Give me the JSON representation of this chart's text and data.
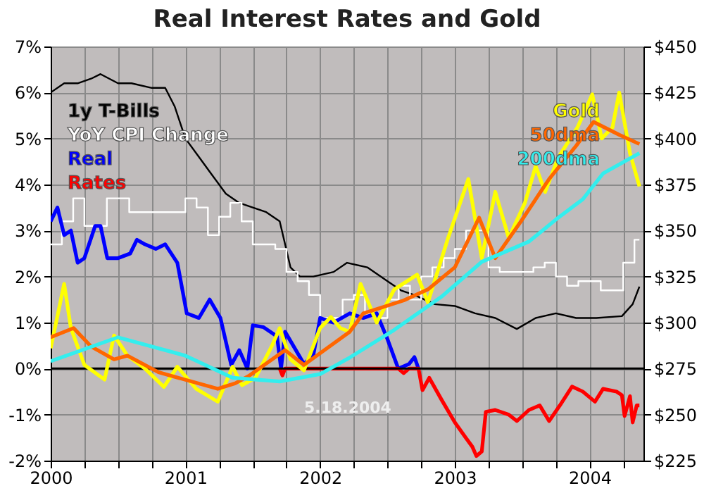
{
  "chart_data": {
    "type": "line",
    "title": "Real Interest Rates and Gold",
    "annotations": [
      "5.18.2004"
    ],
    "xlim": [
      2000,
      2004.4
    ],
    "xticks": [
      2000,
      {
        "value": 2000.25,
        "label": null
      },
      {
        "value": 2000.5,
        "label": null
      },
      {
        "value": 2000.75,
        "label": null
      },
      2001,
      {
        "value": 2001.25,
        "label": null
      },
      {
        "value": 2001.5,
        "label": null
      },
      {
        "value": 2001.75,
        "label": null
      },
      2002,
      {
        "value": 2002.25,
        "label": null
      },
      {
        "value": 2002.5,
        "label": null
      },
      {
        "value": 2002.75,
        "label": null
      },
      2003,
      {
        "value": 2003.25,
        "label": null
      },
      {
        "value": 2003.5,
        "label": null
      },
      {
        "value": 2003.75,
        "label": null
      },
      2004,
      {
        "value": 2004.25,
        "label": null
      }
    ],
    "ylim": [
      -2,
      7
    ],
    "yticks": [
      {
        "value": -2,
        "label": "-2%"
      },
      {
        "value": -1,
        "label": "-1%"
      },
      {
        "value": 0,
        "label": "0%"
      },
      {
        "value": 1,
        "label": "1%"
      },
      {
        "value": 2,
        "label": "2%"
      },
      {
        "value": 3,
        "label": "3%"
      },
      {
        "value": 4,
        "label": "4%"
      },
      {
        "value": 5,
        "label": "5%"
      },
      {
        "value": 6,
        "label": "6%"
      },
      {
        "value": 7,
        "label": "7%"
      }
    ],
    "y2lim": [
      225,
      450
    ],
    "y2ticks": [
      {
        "value": 225,
        "label": "$225"
      },
      {
        "value": 250,
        "label": "$250"
      },
      {
        "value": 275,
        "label": "$275"
      },
      {
        "value": 300,
        "label": "$300"
      },
      {
        "value": 325,
        "label": "$325"
      },
      {
        "value": 350,
        "label": "$350"
      },
      {
        "value": 375,
        "label": "$375"
      },
      {
        "value": 400,
        "label": "$400"
      },
      {
        "value": 425,
        "label": "$425"
      },
      {
        "value": 450,
        "label": "$450"
      }
    ],
    "grid": true,
    "legend": "top left",
    "ref_lines": [
      {
        "axis": "y",
        "value": 0,
        "label": null,
        "color": "#000000"
      }
    ],
    "series": [
      {
        "name": "1y T-Bills",
        "color": "#000000",
        "type": "line",
        "x": [
          2000,
          2000.1,
          2000.2,
          2000.3,
          2000.37,
          2000.5,
          2000.6,
          2000.75,
          2000.85,
          2000.92,
          2001.0,
          2001.1,
          2001.2,
          2001.3,
          2001.4,
          2001.5,
          2001.6,
          2001.7,
          2001.78,
          2001.85,
          2001.95,
          2002.1,
          2002.2,
          2002.35,
          2002.5,
          2002.6,
          2002.7,
          2002.85,
          2003.0,
          2003.15,
          2003.3,
          2003.46,
          2003.6,
          2003.75,
          2003.9,
          2004.05,
          2004.24,
          2004.32,
          2004.37
        ],
        "values": [
          6.0,
          6.2,
          6.2,
          6.3,
          6.4,
          6.2,
          6.2,
          6.1,
          6.1,
          5.7,
          5.0,
          4.6,
          4.2,
          3.8,
          3.6,
          3.5,
          3.4,
          3.2,
          2.2,
          2.0,
          2.0,
          2.1,
          2.3,
          2.2,
          1.9,
          1.7,
          1.6,
          1.4,
          1.36,
          1.2,
          1.1,
          0.86,
          1.1,
          1.2,
          1.1,
          1.1,
          1.14,
          1.4,
          1.78
        ]
      },
      {
        "name": "YoY CPI Change",
        "color": "#ffffff",
        "type": "step",
        "x": [
          2000,
          2000.083,
          2000.167,
          2000.25,
          2000.333,
          2000.417,
          2000.5,
          2000.583,
          2000.667,
          2000.75,
          2000.833,
          2000.917,
          2001,
          2001.083,
          2001.167,
          2001.25,
          2001.333,
          2001.417,
          2001.5,
          2001.583,
          2001.667,
          2001.75,
          2001.833,
          2001.917,
          2002,
          2002.083,
          2002.167,
          2002.25,
          2002.333,
          2002.417,
          2002.5,
          2002.583,
          2002.667,
          2002.75,
          2002.833,
          2002.917,
          2003,
          2003.083,
          2003.167,
          2003.25,
          2003.333,
          2003.417,
          2003.5,
          2003.583,
          2003.667,
          2003.75,
          2003.833,
          2003.917,
          2004,
          2004.083,
          2004.167,
          2004.25,
          2004.333,
          2004.37
        ],
        "values": [
          2.7,
          3.2,
          3.7,
          3.1,
          3.1,
          3.7,
          3.7,
          3.4,
          3.4,
          3.4,
          3.4,
          3.4,
          3.7,
          3.5,
          2.9,
          3.3,
          3.6,
          3.2,
          2.7,
          2.7,
          2.6,
          2.1,
          1.9,
          1.6,
          1.1,
          1.1,
          1.5,
          1.6,
          1.2,
          1.1,
          1.5,
          1.8,
          1.5,
          2.0,
          2.2,
          2.4,
          2.6,
          3.0,
          3.0,
          2.2,
          2.1,
          2.1,
          2.1,
          2.2,
          2.3,
          2.0,
          1.8,
          1.9,
          1.9,
          1.7,
          1.7,
          2.3,
          2.8,
          2.8
        ]
      },
      {
        "name": "Real",
        "color": "#0000ff",
        "type": "line",
        "x": [
          2000,
          2000.05,
          2000.1,
          2000.15,
          2000.2,
          2000.25,
          2000.33,
          2000.37,
          2000.42,
          2000.5,
          2000.59,
          2000.64,
          2000.7,
          2000.78,
          2000.85,
          2000.94,
          2001.01,
          2001.1,
          2001.18,
          2001.26,
          2001.34,
          2001.4,
          2001.46,
          2001.5,
          2001.58,
          2001.68,
          2001.71,
          2001.74,
          2001.8,
          2001.88,
          2001.95,
          2002.0,
          2002.1,
          2002.22,
          2002.32,
          2002.42,
          2002.5,
          2002.58,
          2002.66,
          2002.7,
          2002.73
        ],
        "values": [
          3.2,
          3.5,
          2.9,
          3.0,
          2.3,
          2.4,
          3.1,
          3.1,
          2.4,
          2.4,
          2.5,
          2.8,
          2.7,
          2.6,
          2.7,
          2.3,
          1.2,
          1.1,
          1.5,
          1.1,
          0.08,
          0.4,
          0.0,
          0.94,
          0.9,
          0.7,
          0.0,
          0.8,
          0.5,
          0.1,
          0.3,
          1.1,
          1.0,
          1.2,
          1.1,
          1.2,
          0.64,
          0.0,
          0.1,
          0.25,
          0.0
        ]
      },
      {
        "name": "Rates",
        "color": "#ff0000",
        "type": "line",
        "x": [
          2001.7,
          2001.72,
          2001.74,
          2002.58,
          2002.62,
          2002.66,
          2002.73,
          2002.76,
          2002.81,
          2002.9,
          2003.0,
          2003.08,
          2003.13,
          2003.16,
          2003.2,
          2003.23,
          2003.3,
          2003.4,
          2003.46,
          2003.55,
          2003.63,
          2003.7,
          2003.78,
          2003.87,
          2003.95,
          2004.04,
          2004.1,
          2004.2,
          2004.24,
          2004.26,
          2004.3,
          2004.32,
          2004.35,
          2004.37
        ],
        "values": [
          0.0,
          -0.15,
          0.0,
          0.0,
          -0.1,
          0.0,
          0.0,
          -0.47,
          -0.2,
          -0.67,
          -1.17,
          -1.5,
          -1.7,
          -1.9,
          -1.8,
          -0.94,
          -0.9,
          -1.0,
          -1.14,
          -0.9,
          -0.8,
          -1.14,
          -0.8,
          -0.39,
          -0.5,
          -0.72,
          -0.44,
          -0.5,
          -0.58,
          -1.03,
          -0.6,
          -1.17,
          -0.8,
          -0.8
        ]
      },
      {
        "name": "Gold",
        "color": "#ffff00",
        "type": "line",
        "axis": "y2",
        "x": [
          2000,
          2000.1,
          2000.15,
          2000.25,
          2000.4,
          2000.47,
          2000.57,
          2000.7,
          2000.84,
          2000.94,
          2001.08,
          2001.24,
          2001.35,
          2001.42,
          2001.52,
          2001.64,
          2001.7,
          2001.78,
          2001.88,
          2002.0,
          2002.08,
          2002.15,
          2002.22,
          2002.3,
          2002.42,
          2002.55,
          2002.72,
          2002.8,
          2002.95,
          2003.1,
          2003.2,
          2003.3,
          2003.4,
          2003.52,
          2003.6,
          2003.67,
          2003.77,
          2003.91,
          2004.02,
          2004.09,
          2004.17,
          2004.22,
          2004.3,
          2004.37
        ],
        "values": [
          286,
          321,
          297,
          277,
          269,
          293,
          282,
          275,
          265,
          276,
          264,
          257,
          276,
          266,
          270,
          287,
          297,
          280,
          274,
          297,
          303,
          297,
          295,
          321,
          300,
          318,
          326,
          311,
          346,
          378,
          335,
          371,
          346,
          365,
          385,
          371,
          390,
          406,
          424,
          400,
          406,
          425,
          392,
          374
        ]
      },
      {
        "name": "50dma",
        "color": "#ff6600",
        "type": "line",
        "axis": "y2",
        "x": [
          2000,
          2000.17,
          2000.3,
          2000.47,
          2000.57,
          2000.8,
          2001.24,
          2001.37,
          2001.47,
          2001.74,
          2001.88,
          2002.22,
          2002.32,
          2002.62,
          2002.8,
          2003.0,
          2003.18,
          2003.3,
          2003.5,
          2003.7,
          2003.9,
          2004.03,
          2004.22,
          2004.37
        ],
        "values": [
          292,
          297,
          287,
          280,
          282,
          273,
          264,
          267,
          271,
          285,
          277,
          295,
          305,
          312,
          318,
          330,
          357,
          335,
          356,
          378,
          396,
          409,
          402,
          397
        ]
      },
      {
        "name": "200dma",
        "color": "#33eeee",
        "type": "line",
        "axis": "y2",
        "x": [
          2000,
          2000.5,
          2001.0,
          2001.35,
          2001.7,
          2002.0,
          2002.22,
          2002.55,
          2002.9,
          2003.2,
          2003.55,
          2003.75,
          2003.95,
          2004.1,
          2004.37
        ],
        "values": [
          279,
          292,
          282,
          270,
          268,
          272,
          281,
          296,
          314,
          333,
          344,
          356,
          367,
          381,
          392
        ]
      }
    ]
  }
}
